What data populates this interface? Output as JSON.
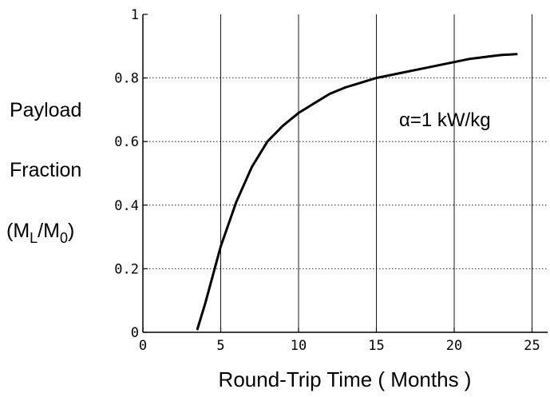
{
  "chart_data": {
    "type": "line",
    "xlabel": "Round-Trip Time ( Months )",
    "ylabel": {
      "line1": "Payload",
      "line2": "Fraction",
      "line3_open": "(M",
      "line3_sub1": "L",
      "line3_mid": "/M",
      "line3_sub2": "0",
      "line3_close": ")"
    },
    "xlim": [
      0,
      26
    ],
    "ylim": [
      0,
      1
    ],
    "x_ticks": [
      0,
      5,
      10,
      15,
      20,
      25
    ],
    "x_tick_labels": [
      "0",
      "5",
      "10",
      "15",
      "20",
      "25"
    ],
    "y_ticks": [
      0,
      0.2,
      0.4,
      0.6,
      0.8,
      1
    ],
    "y_tick_labels": [
      "0",
      "0.2",
      "0.4",
      "0.6",
      "0.8",
      "1"
    ],
    "grid": true,
    "series": [
      {
        "x": [
          3.5,
          4,
          5,
          6,
          7,
          8,
          9,
          10,
          11,
          12,
          13,
          14,
          15,
          16,
          17,
          18,
          19,
          20,
          21,
          22,
          23,
          24
        ],
        "y": [
          0.01,
          0.09,
          0.27,
          0.41,
          0.52,
          0.6,
          0.65,
          0.69,
          0.72,
          0.75,
          0.77,
          0.785,
          0.8,
          0.81,
          0.82,
          0.83,
          0.84,
          0.85,
          0.86,
          0.866,
          0.872,
          0.875
        ]
      }
    ],
    "annotation": "α=1 kW/kg"
  },
  "colors": {
    "line": "#000000",
    "grid": "#000000",
    "background": "#ffffff"
  }
}
